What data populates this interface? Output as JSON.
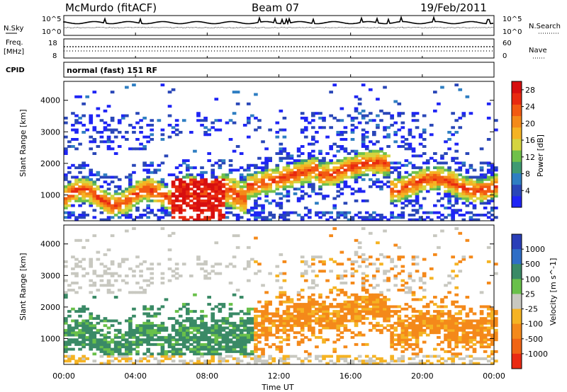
{
  "header": {
    "station": "McMurdo (fitACF)",
    "beam": "Beam 07",
    "date": "19/Feb/2011"
  },
  "noise_panel": {
    "left_label": "N.Sky",
    "right_label": "N.Search",
    "ticks": [
      "10^5",
      "10^0"
    ]
  },
  "freq_panel": {
    "left_label_1": "Freq.",
    "left_label_2": "[MHz]",
    "left_ticks": [
      "18",
      "8"
    ],
    "right_label": "Nave",
    "right_ticks": [
      "60",
      "0"
    ]
  },
  "cpid_panel": {
    "label": "CPID",
    "text": "normal (fast) 151 RF"
  },
  "x_axis": {
    "label": "Time UT",
    "ticks": [
      "00:00",
      "04:00",
      "08:00",
      "12:00",
      "16:00",
      "20:00",
      "00:00"
    ]
  },
  "chart_data": [
    {
      "type": "heatmap",
      "ylabel": "Slant Range [km]",
      "xlabel": "Time UT",
      "y_ticks": [
        "1000",
        "2000",
        "3000",
        "4000"
      ],
      "ylim": [
        180,
        4600
      ],
      "xlim": [
        0,
        24
      ],
      "colorbar": {
        "label": "Power [dB]",
        "ticks": [
          "4",
          "8",
          "12",
          "16",
          "20",
          "24",
          "28"
        ],
        "range": [
          0,
          30
        ],
        "colors": [
          "#1f25f5",
          "#2a47b8",
          "#2f7ec2",
          "#3f9a72",
          "#70c14a",
          "#d5d43f",
          "#f5b323",
          "#f48a19",
          "#f25a12",
          "#e82a10",
          "#d70f0f"
        ]
      }
    },
    {
      "type": "heatmap",
      "ylabel": "Slant Range [km]",
      "xlabel": "Time UT",
      "y_ticks": [
        "1000",
        "2000",
        "3000",
        "4000"
      ],
      "ylim": [
        180,
        4600
      ],
      "xlim": [
        0,
        24
      ],
      "colorbar": {
        "label": "Velocity [m s^-1]",
        "ticks": [
          "1000",
          "500",
          "100",
          "25",
          "-25",
          "-100",
          "-500",
          "-1000"
        ],
        "colors": [
          "#2a3fb8",
          "#2f6ec6",
          "#3a8a66",
          "#69c04a",
          "#c8c8c0",
          "#f5b323",
          "#f4891a",
          "#f06414",
          "#ea2a12"
        ]
      }
    }
  ]
}
